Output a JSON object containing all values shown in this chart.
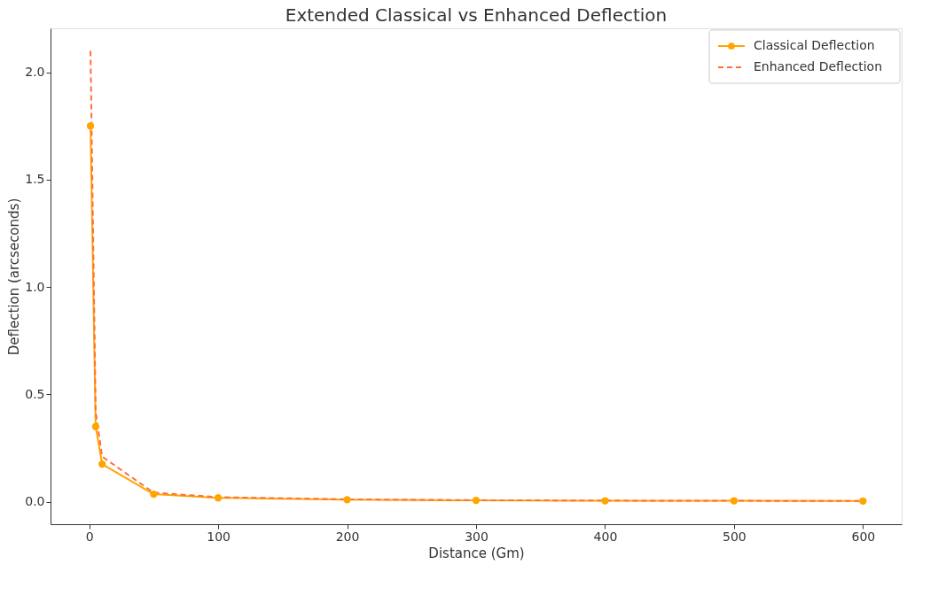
{
  "chart_data": {
    "type": "line",
    "title": "Extended Classical vs Enhanced Deflection",
    "xlabel": "Distance (Gm)",
    "ylabel": "Deflection (arcseconds)",
    "x": [
      1,
      5,
      10,
      50,
      100,
      200,
      300,
      400,
      500,
      600
    ],
    "series": [
      {
        "name": "Classical Deflection",
        "color": "#ffa500",
        "marker": "circle",
        "line_style": "solid",
        "values": [
          1.75,
          0.35,
          0.175,
          0.035,
          0.018,
          0.009,
          0.006,
          0.004,
          0.004,
          0.003
        ]
      },
      {
        "name": "Enhanced Deflection",
        "color": "#ff6f3c",
        "marker": "none",
        "line_style": "dashed",
        "values": [
          2.1,
          0.42,
          0.21,
          0.042,
          0.021,
          0.011,
          0.007,
          0.005,
          0.004,
          0.003
        ]
      }
    ],
    "xlim": [
      -30,
      630
    ],
    "ylim": [
      -0.105,
      2.205
    ],
    "xticks": [
      0,
      100,
      200,
      300,
      400,
      500,
      600
    ],
    "yticks": [
      {
        "value": 0,
        "label": "0.0"
      },
      0.5,
      {
        "value": 1,
        "label": "1.0"
      },
      1.5,
      {
        "value": 2,
        "label": "2.0"
      }
    ],
    "grid": false,
    "legend": "top right"
  }
}
